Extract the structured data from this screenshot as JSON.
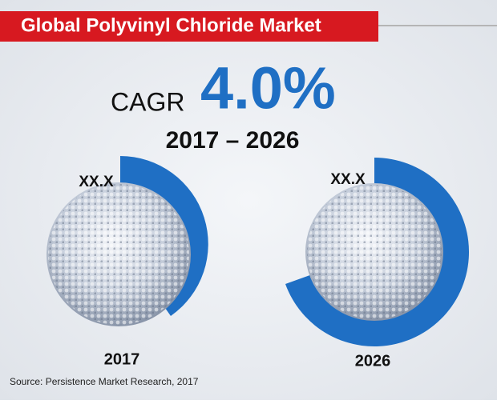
{
  "header": {
    "title": "Global Polyvinyl Chloride Market"
  },
  "cagr": {
    "label": "CAGR",
    "value": "4.0%",
    "period": "2017 – 2026"
  },
  "panels": [
    {
      "value_label": "XX.X",
      "year": "2017"
    },
    {
      "value_label": "XX.X",
      "year": "2026"
    }
  ],
  "source": "Source:  Persistence Market Research, 2017"
}
